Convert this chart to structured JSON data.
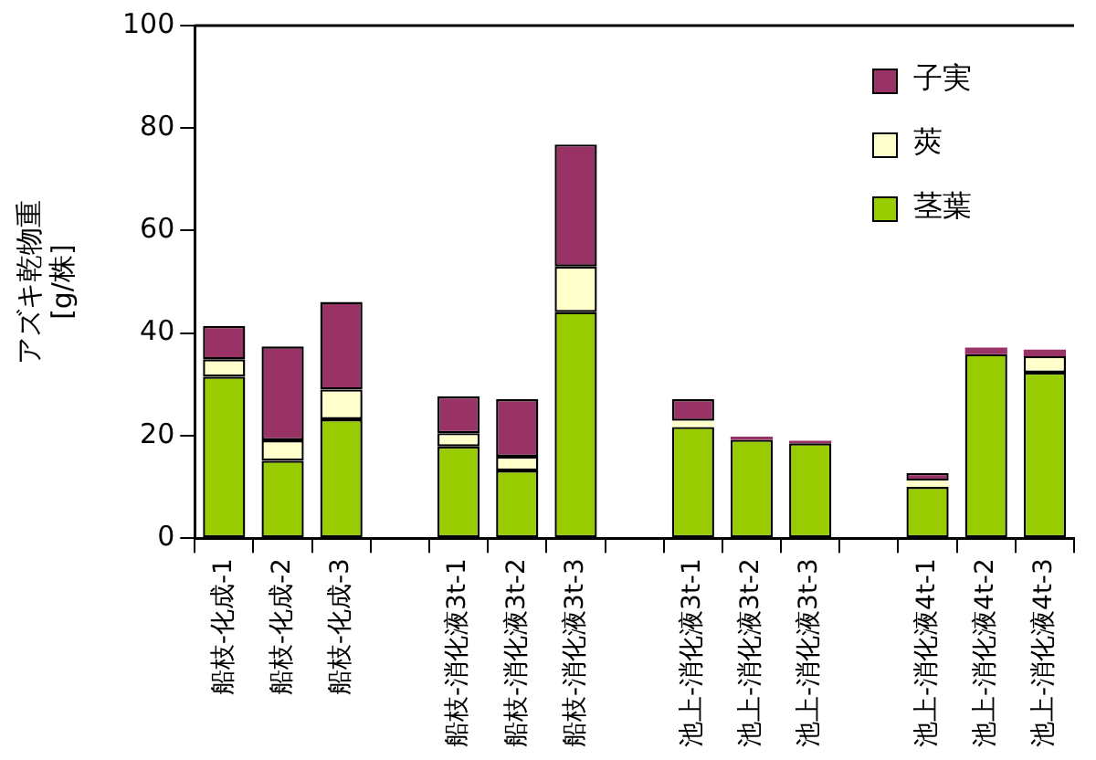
{
  "chart_data": {
    "type": "bar",
    "stacked": true,
    "ylabel": "アズキ乾物重\n[g/株]",
    "categories": [
      "船枝-化成-1",
      "船枝-化成-2",
      "船枝-化成-3",
      null,
      "船枝-消化液3t-1",
      "船枝-消化液3t-2",
      "船枝-消化液3t-3",
      null,
      "池上-消化液3t-1",
      "池上-消化液3t-2",
      "池上-消化液3t-3",
      null,
      "池上-消化液4t-1",
      "池上-消化液4t-2",
      "池上-消化液4t-3"
    ],
    "series": [
      {
        "name": "茎葉",
        "color": "#99cc00",
        "values": [
          31.5,
          15.1,
          23.2,
          null,
          17.9,
          13.2,
          44.1,
          null,
          21.7,
          19.2,
          18.5,
          null,
          10.0,
          35.9,
          32.3
        ]
      },
      {
        "name": "莢",
        "color": "#ffffcc",
        "values": [
          3.4,
          4.0,
          5.8,
          null,
          2.6,
          2.7,
          8.9,
          null,
          1.2,
          null,
          null,
          null,
          1.2,
          null,
          3.2
        ]
      },
      {
        "name": "子実",
        "color": "#993366",
        "values": [
          6.5,
          18.3,
          17.1,
          null,
          7.2,
          11.2,
          23.8,
          null,
          4.2,
          0.6,
          0.5,
          null,
          1.5,
          1.3,
          1.3
        ]
      }
    ],
    "ylim": [
      0,
      100
    ],
    "yticks": [
      0,
      20,
      40,
      60,
      80,
      100
    ],
    "grid": false,
    "legend": "top right"
  }
}
